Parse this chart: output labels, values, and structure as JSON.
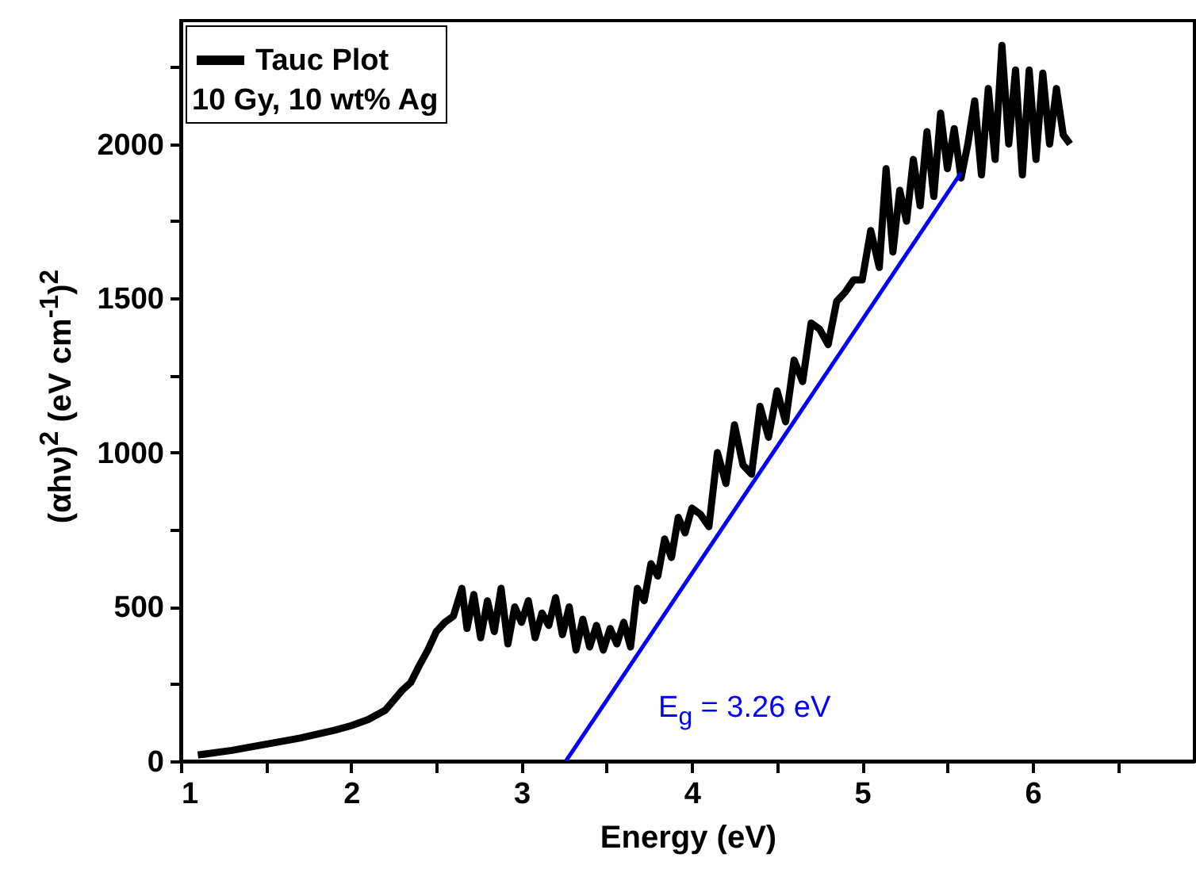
{
  "chart_data": {
    "type": "line",
    "xlabel": "Energy (eV)",
    "ylabel": "(αhν)$^{2}$ (eV cm$^{-1}$)$^{2}$",
    "legend_title": "10 Gy, 10 wt% Ag",
    "legend": "top left",
    "xlim": [
      1,
      6.95
    ],
    "xticks": [
      1,
      {
        "value": 1.5,
        "label": null
      },
      2,
      {
        "value": 2.5,
        "label": null
      },
      3,
      {
        "value": 3.5,
        "label": null
      },
      4,
      {
        "value": 4.5,
        "label": null
      },
      5,
      {
        "value": 5.5,
        "label": null
      },
      6,
      {
        "value": 6.5,
        "label": null
      }
    ],
    "ylim": [
      0,
      2400
    ],
    "yticks": [
      0,
      {
        "value": 250,
        "label": null
      },
      500,
      {
        "value": 750,
        "label": null
      },
      1000,
      {
        "value": 1250,
        "label": null
      },
      1500,
      {
        "value": 1750,
        "label": null
      },
      2000,
      {
        "value": 2250,
        "label": null
      }
    ],
    "grid": false,
    "annotations": [
      "E$_{g}$ = 3.26 eV"
    ],
    "series": [
      {
        "name": "Tauc Plot",
        "color": "#000000",
        "x": [
          1.1,
          1.3,
          1.5,
          1.7,
          1.9,
          2.0,
          2.1,
          2.2,
          2.3,
          2.35,
          2.4,
          2.45,
          2.5,
          2.55,
          2.6,
          2.65,
          2.68,
          2.72,
          2.76,
          2.8,
          2.84,
          2.88,
          2.92,
          2.96,
          3.0,
          3.04,
          3.08,
          3.12,
          3.16,
          3.2,
          3.24,
          3.28,
          3.32,
          3.36,
          3.4,
          3.44,
          3.48,
          3.52,
          3.56,
          3.6,
          3.64,
          3.68,
          3.72,
          3.76,
          3.8,
          3.84,
          3.88,
          3.92,
          3.96,
          4.0,
          4.05,
          4.1,
          4.15,
          4.2,
          4.25,
          4.3,
          4.35,
          4.4,
          4.45,
          4.5,
          4.55,
          4.6,
          4.65,
          4.7,
          4.75,
          4.8,
          4.85,
          4.9,
          4.95,
          5.0,
          5.05,
          5.1,
          5.14,
          5.18,
          5.22,
          5.26,
          5.3,
          5.34,
          5.38,
          5.42,
          5.46,
          5.5,
          5.54,
          5.58,
          5.62,
          5.66,
          5.7,
          5.74,
          5.78,
          5.82,
          5.86,
          5.9,
          5.94,
          5.98,
          6.02,
          6.06,
          6.1,
          6.14,
          6.18,
          6.22
        ],
        "values": [
          20,
          35,
          55,
          75,
          100,
          115,
          135,
          165,
          230,
          255,
          310,
          360,
          420,
          450,
          470,
          560,
          430,
          540,
          400,
          520,
          420,
          560,
          380,
          500,
          450,
          520,
          400,
          480,
          440,
          530,
          410,
          500,
          360,
          460,
          370,
          440,
          360,
          430,
          380,
          450,
          370,
          560,
          520,
          640,
          600,
          720,
          660,
          790,
          740,
          820,
          800,
          760,
          1000,
          900,
          1090,
          960,
          930,
          1150,
          1050,
          1200,
          1100,
          1300,
          1230,
          1420,
          1400,
          1350,
          1490,
          1520,
          1560,
          1560,
          1720,
          1600,
          1920,
          1650,
          1850,
          1750,
          1950,
          1800,
          2040,
          1830,
          2100,
          1920,
          2050,
          1890,
          2000,
          2140,
          1900,
          2180,
          1950,
          2320,
          2000,
          2240,
          1900,
          2240,
          1950,
          2230,
          2000,
          2180,
          2030,
          2000
        ]
      },
      {
        "type": "line",
        "color": "#0000ff",
        "x": [
          3.26,
          5.58
        ],
        "values": [
          0,
          1907
        ]
      }
    ]
  }
}
